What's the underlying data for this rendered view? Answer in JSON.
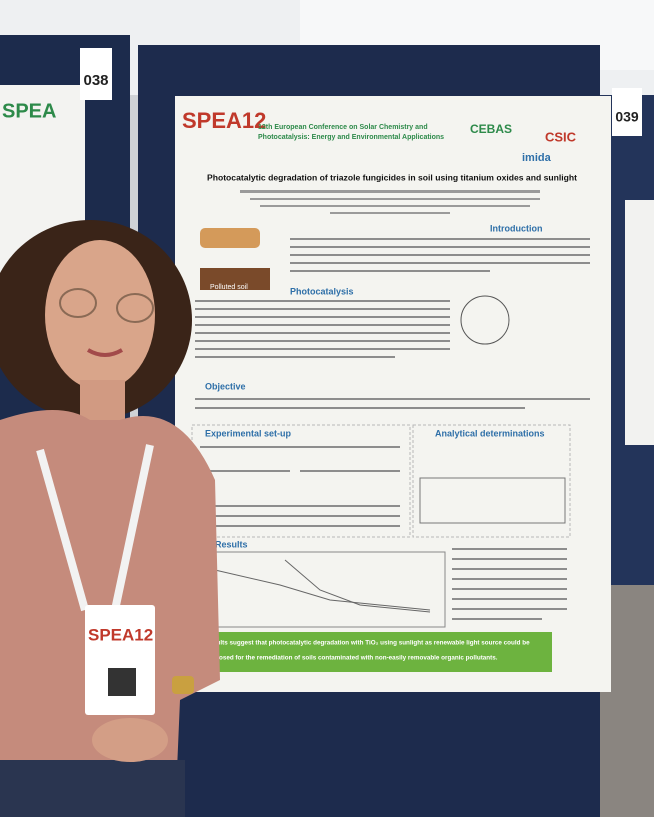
{
  "boards": {
    "left_number": "038",
    "right_number": "039"
  },
  "poster": {
    "conference_logo": "SPEA12",
    "conference_name": [
      "12th European Conference on Solar Chemistry and",
      "Photocatalysis: Energy and Environmental Applications"
    ],
    "partner_logos": [
      "CEBAS",
      "CSIC",
      "imida"
    ],
    "title": "Photocatalytic degradation of triazole fungicides in soil using titanium oxides and sunlight",
    "figure_label": "Polluted soil",
    "sections": [
      "Introduction",
      "Photocatalysis",
      "Objective",
      "Experimental set-up",
      "Analytical determinations",
      "Results"
    ],
    "conclusion": [
      "Results suggest that photocatalytic degradation with TiO₂ using sunlight as renewable light source could be",
      "proposed for the remediation of soils contaminated with non-easily removable organic pollutants."
    ]
  },
  "badge": {
    "logo": "SPEA12"
  }
}
